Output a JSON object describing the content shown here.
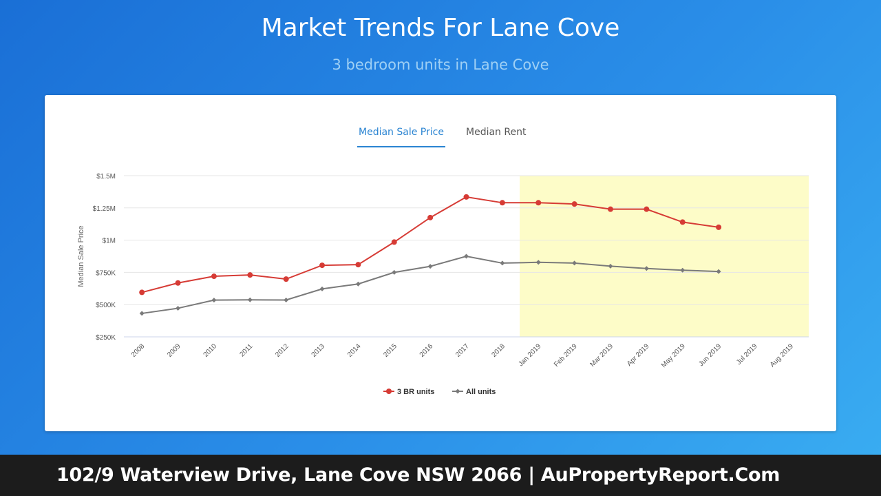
{
  "header": {
    "title": "Market Trends For Lane Cove",
    "subtitle": "3 bedroom units in Lane Cove"
  },
  "tabs": [
    {
      "label": "Median Sale Price",
      "active": true
    },
    {
      "label": "Median Rent",
      "active": false
    }
  ],
  "chart_data": {
    "type": "line",
    "ylabel": "Median Sale Price",
    "xlabel": "",
    "categories": [
      "2008",
      "2009",
      "2010",
      "2011",
      "2012",
      "2013",
      "2014",
      "2015",
      "2016",
      "2017",
      "2018",
      "Jan 2019",
      "Feb 2019",
      "Mar 2019",
      "Apr 2019",
      "May 2019",
      "Jun 2019",
      "Jul 2019",
      "Aug 2019"
    ],
    "ylim": [
      250000,
      1500000
    ],
    "yticks": [
      {
        "value": 1500000,
        "label": "$1.5M"
      },
      {
        "value": 1250000,
        "label": "$1.25M"
      },
      {
        "value": 1000000,
        "label": "$1M"
      },
      {
        "value": 750000,
        "label": "$750K"
      },
      {
        "value": 500000,
        "label": "$500K"
      },
      {
        "value": 250000,
        "label": "$250K"
      }
    ],
    "highlight_range": {
      "from": "Jan 2019",
      "to": "Aug 2019",
      "color": "#fdfcc8"
    },
    "grid": true,
    "legend_position": "bottom-center",
    "series": [
      {
        "name": "3 BR units",
        "color": "#d63b35",
        "marker": "circle",
        "values": [
          595000,
          668000,
          720000,
          730000,
          698000,
          805000,
          810000,
          985000,
          1175000,
          1335000,
          1290000,
          1290000,
          1280000,
          1240000,
          1240000,
          1140000,
          1100000,
          null,
          null
        ]
      },
      {
        "name": "All units",
        "color": "#7a7a7a",
        "marker": "diamond",
        "values": [
          432000,
          472000,
          535000,
          537000,
          536000,
          622000,
          660000,
          750000,
          797000,
          875000,
          822000,
          828000,
          822000,
          798000,
          780000,
          767000,
          757000,
          null,
          null
        ]
      }
    ]
  },
  "footer": {
    "text": "102/9 Waterview Drive, Lane Cove NSW 2066 | AuPropertyReport.Com"
  }
}
